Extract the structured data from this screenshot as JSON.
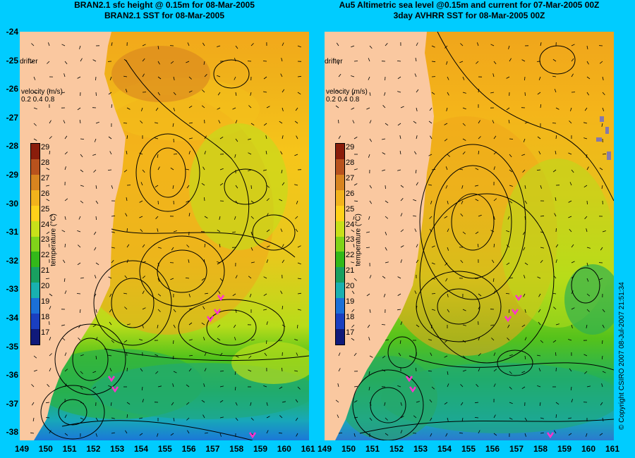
{
  "panels": [
    {
      "title1": "BRAN2.1 sfc height @ 0.15m for 08-Mar-2005",
      "title2": "BRAN2.1 SST for 08-Mar-2005"
    },
    {
      "title1": "Au5 Altimetric sea level  @0.15m and current for 07-Mar-2005 00Z",
      "title2": "3day AVHRR SST for 08-Mar-2005 00Z"
    }
  ],
  "drifter_label": "drifter",
  "velocity_label": "velocity (m/s)",
  "velocity_scale": "0.2 0.4 0.8",
  "colorbar": {
    "ticks": [
      "29",
      "28",
      "27",
      "26",
      "25",
      "24",
      "23",
      "22",
      "21",
      "20",
      "19",
      "18",
      "17"
    ],
    "label": "temperature (°C)",
    "colors": [
      "#8a1d0b",
      "#b8521d",
      "#d8841f",
      "#f2b31c",
      "#ffd11a",
      "#c8e01a",
      "#80d31a",
      "#33b81a",
      "#19a060",
      "#19b0b0",
      "#1b70d8",
      "#1a3fc0",
      "#101a7a"
    ]
  },
  "y_labels": [
    "-24",
    "-25",
    "-26",
    "-27",
    "-28",
    "-29",
    "-30",
    "-31",
    "-32",
    "-33",
    "-34",
    "-35",
    "-36",
    "-37",
    "-38"
  ],
  "x_labels": [
    "149",
    "150",
    "151",
    "152",
    "153",
    "154",
    "155",
    "156",
    "157",
    "158",
    "159",
    "160",
    "161"
  ],
  "copyright": "© Copyright CSIRO 2007  08-Jul-2007 21:51:34"
}
